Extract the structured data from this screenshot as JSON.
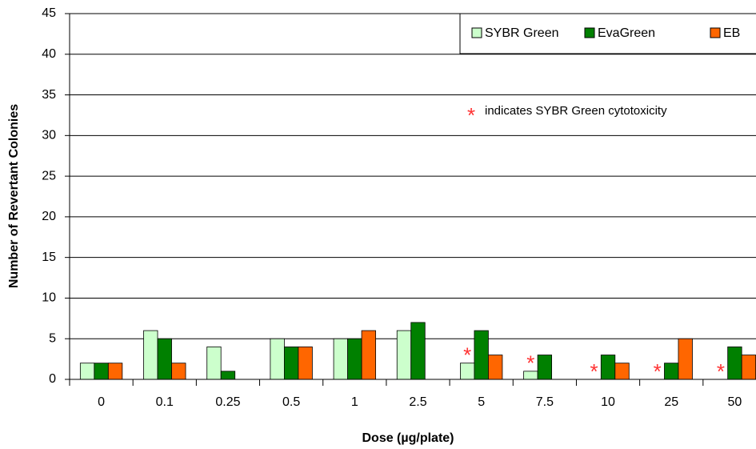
{
  "chart_data": {
    "type": "bar",
    "x_label": "Dose (µg/plate)",
    "y_label": "Number of Revertant Colonies",
    "categories": [
      "0",
      "0.1",
      "0.25",
      "0.5",
      "1",
      "2.5",
      "5",
      "7.5",
      "10",
      "25",
      "50"
    ],
    "series": [
      {
        "name": "SYBR Green",
        "color": "#ccffcc",
        "values": [
          2,
          6,
          4,
          5,
          5,
          6,
          2,
          1,
          0,
          0,
          0
        ]
      },
      {
        "name": "EvaGreen",
        "color": "#008000",
        "values": [
          2,
          5,
          1,
          4,
          5,
          7,
          6,
          3,
          3,
          2,
          4
        ]
      },
      {
        "name": "EB",
        "color": "#ff6600",
        "values": [
          2,
          2,
          0,
          4,
          6,
          0,
          3,
          0,
          2,
          5,
          3
        ]
      }
    ],
    "ylim": [
      0,
      45
    ],
    "yticks": [
      0,
      5,
      10,
      15,
      20,
      25,
      30,
      35,
      40,
      45
    ],
    "grid": true,
    "legend": "top-right",
    "annotation": "indicates SYBR Green cytotoxicity",
    "annotation_marker": "*",
    "annotation_marker_color": "#ff3333",
    "marked_categories": [
      6,
      7,
      8,
      9,
      10
    ]
  }
}
